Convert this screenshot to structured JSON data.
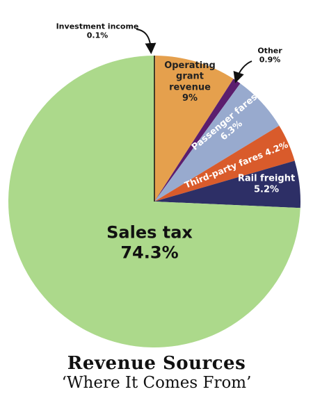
{
  "chart_data": {
    "type": "pie",
    "title": "Revenue Sources",
    "subtitle": "‘Where It Comes From’",
    "slices": [
      {
        "label": "Investment income",
        "value": 0.1,
        "value_label": "0.1%",
        "color": "#f0a24a"
      },
      {
        "label": "Operating grant revenue",
        "value": 9,
        "value_label": "9%",
        "color": "#e5a04d"
      },
      {
        "label": "Other",
        "value": 0.9,
        "value_label": "0.9%",
        "color": "#5b1e6e"
      },
      {
        "label": "Passenger fares",
        "value": 6.3,
        "value_label": "6.3%",
        "color": "#98aace"
      },
      {
        "label": "Third-party fares",
        "value": 4.2,
        "value_label": "4.2%",
        "color": "#d95b2b"
      },
      {
        "label": "Rail freight",
        "value": 5.2,
        "value_label": "5.2%",
        "color": "#2d2f66"
      },
      {
        "label": "Sales tax",
        "value": 74.3,
        "value_label": "74.3%",
        "color": "#acd98b"
      }
    ],
    "start": "12 o'clock, clockwise",
    "legend": "none"
  }
}
